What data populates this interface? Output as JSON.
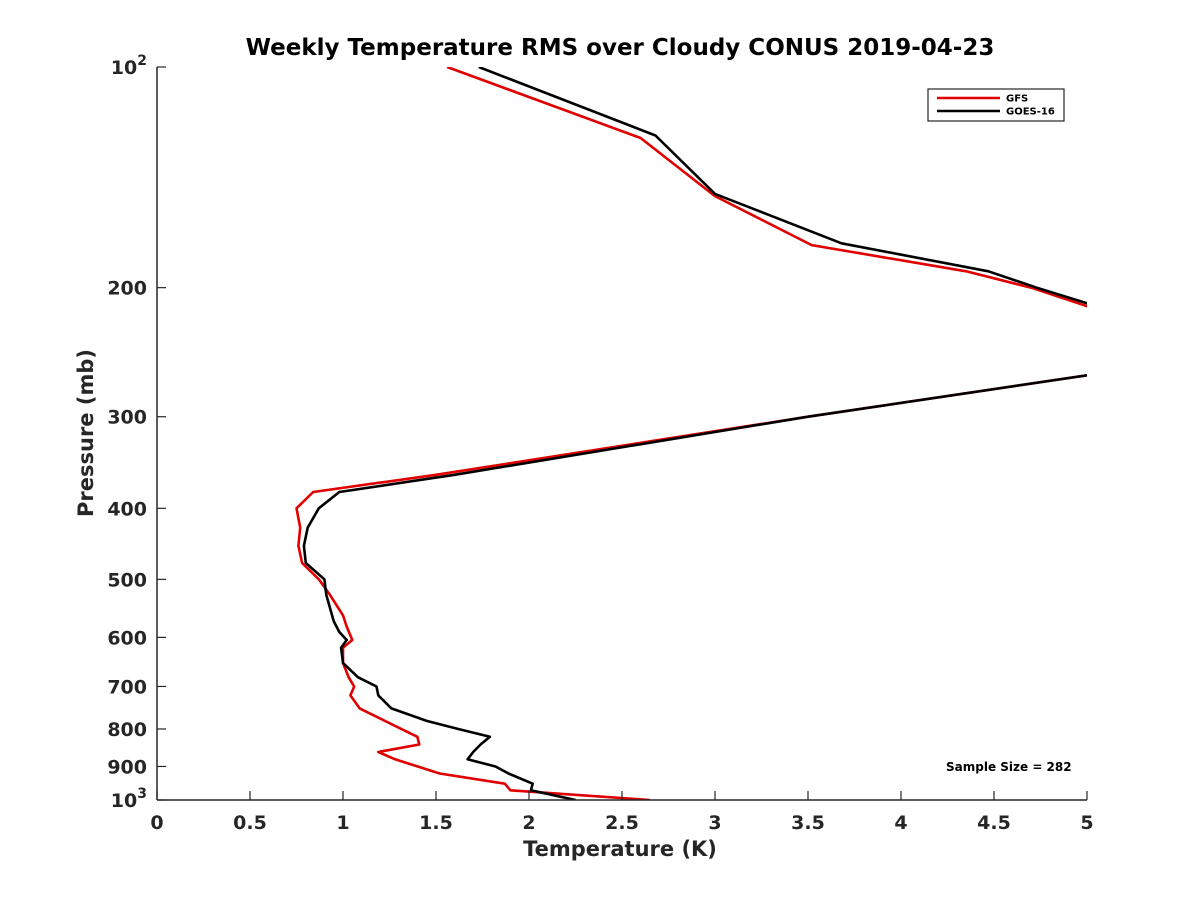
{
  "chart_data": {
    "type": "line",
    "title": "Weekly Temperature RMS over Cloudy CONUS 2019-04-23",
    "xlabel": "Temperature (K)",
    "ylabel": "Pressure (mb)",
    "xlim": [
      0,
      5
    ],
    "ylim": [
      100,
      1000
    ],
    "y_scale": "log",
    "y_reversed": true,
    "grid": false,
    "legend_position": "top-right",
    "x_ticks": [
      0,
      0.5,
      1,
      1.5,
      2,
      2.5,
      3,
      3.5,
      4,
      4.5,
      5
    ],
    "x_tick_labels": [
      "0",
      "0.5",
      "1",
      "1.5",
      "2",
      "2.5",
      "3",
      "3.5",
      "4",
      "4.5",
      "5"
    ],
    "y_ticks": [
      100,
      200,
      300,
      400,
      500,
      600,
      700,
      800,
      900,
      1000
    ],
    "y_tick_labels": [
      {
        "base": "10",
        "exp": "2"
      },
      {
        "base": "200",
        "exp": ""
      },
      {
        "base": "300",
        "exp": ""
      },
      {
        "base": "400",
        "exp": ""
      },
      {
        "base": "500",
        "exp": ""
      },
      {
        "base": "600",
        "exp": ""
      },
      {
        "base": "700",
        "exp": ""
      },
      {
        "base": "800",
        "exp": ""
      },
      {
        "base": "900",
        "exp": ""
      },
      {
        "base": "10",
        "exp": "3"
      }
    ],
    "series": [
      {
        "name": "GFS",
        "color": "#e00000",
        "points": [
          [
            1.56,
            100
          ],
          [
            2.6,
            125
          ],
          [
            3.0,
            150
          ],
          [
            3.52,
            175
          ],
          [
            4.35,
            190
          ],
          [
            4.7,
            200
          ],
          [
            5.0,
            212
          ],
          [
            5.6,
            250
          ],
          [
            3.5,
            300
          ],
          [
            1.5,
            360
          ],
          [
            0.84,
            380
          ],
          [
            0.75,
            400
          ],
          [
            0.77,
            425
          ],
          [
            0.76,
            450
          ],
          [
            0.78,
            475
          ],
          [
            0.87,
            500
          ],
          [
            0.93,
            525
          ],
          [
            1.0,
            560
          ],
          [
            1.02,
            580
          ],
          [
            1.05,
            605
          ],
          [
            1.0,
            620
          ],
          [
            1.0,
            650
          ],
          [
            1.03,
            680
          ],
          [
            1.06,
            700
          ],
          [
            1.04,
            720
          ],
          [
            1.09,
            750
          ],
          [
            1.27,
            790
          ],
          [
            1.4,
            820
          ],
          [
            1.41,
            840
          ],
          [
            1.19,
            860
          ],
          [
            1.28,
            880
          ],
          [
            1.52,
            920
          ],
          [
            1.87,
            950
          ],
          [
            1.9,
            970
          ],
          [
            2.65,
            1000
          ]
        ]
      },
      {
        "name": "GOES-16",
        "color": "#000000",
        "points": [
          [
            1.73,
            100
          ],
          [
            2.68,
            124
          ],
          [
            3.0,
            149
          ],
          [
            3.68,
            174
          ],
          [
            4.47,
            190
          ],
          [
            4.73,
            200
          ],
          [
            5.0,
            210
          ],
          [
            5.6,
            250
          ],
          [
            3.5,
            300
          ],
          [
            1.6,
            360
          ],
          [
            0.98,
            380
          ],
          [
            0.87,
            400
          ],
          [
            0.81,
            425
          ],
          [
            0.79,
            450
          ],
          [
            0.8,
            475
          ],
          [
            0.9,
            500
          ],
          [
            0.91,
            525
          ],
          [
            0.95,
            570
          ],
          [
            0.98,
            590
          ],
          [
            1.02,
            605
          ],
          [
            0.99,
            620
          ],
          [
            1.0,
            650
          ],
          [
            1.08,
            680
          ],
          [
            1.18,
            700
          ],
          [
            1.19,
            720
          ],
          [
            1.26,
            750
          ],
          [
            1.45,
            780
          ],
          [
            1.62,
            800
          ],
          [
            1.79,
            820
          ],
          [
            1.74,
            840
          ],
          [
            1.7,
            860
          ],
          [
            1.67,
            880
          ],
          [
            1.82,
            900
          ],
          [
            1.89,
            920
          ],
          [
            2.02,
            950
          ],
          [
            2.01,
            970
          ],
          [
            2.25,
            1000
          ]
        ]
      }
    ],
    "annotations": [
      {
        "text": "Sample Size = 282"
      }
    ]
  }
}
